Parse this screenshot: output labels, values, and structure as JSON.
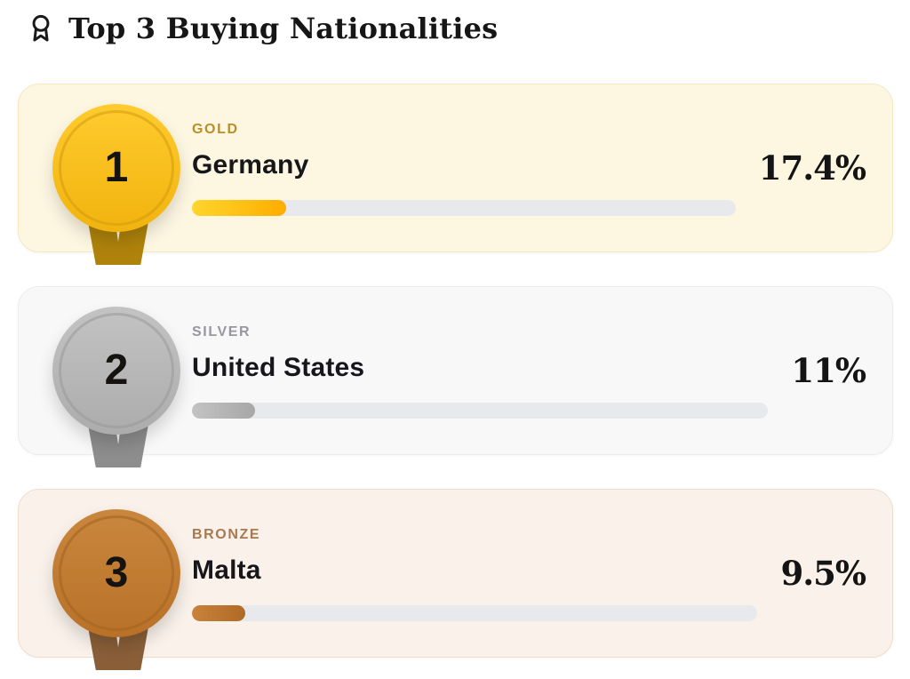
{
  "header": {
    "title": "Top 3 Buying Nationalities",
    "icon": "award-icon"
  },
  "chart_data": {
    "type": "bar",
    "orientation": "horizontal",
    "title": "Top 3 Buying Nationalities",
    "categories": [
      "Germany",
      "United States",
      "Malta"
    ],
    "values": [
      17.4,
      11,
      9.5
    ],
    "value_labels": [
      "17.4%",
      "11%",
      "9.5%"
    ],
    "tier_labels": [
      "GOLD",
      "SILVER",
      "BRONZE"
    ],
    "xlim": [
      0,
      100
    ],
    "grid": false,
    "legend": false
  },
  "ranks": [
    {
      "rank": "1",
      "tier": "GOLD",
      "country": "Germany",
      "percent": 17.4,
      "percent_label": "17.4%",
      "colors": {
        "card_bg": "#FDF7E2",
        "card_border": "#F4E8C1",
        "medal_top": "#FFCB2E",
        "medal_bottom": "#F1B30E",
        "ring": "#D29B10",
        "ribbon": "#AF830B",
        "label": "#BD8E28",
        "fill_start": "#FFD52C",
        "fill_end": "#FFAD00"
      }
    },
    {
      "rank": "2",
      "tier": "SILVER",
      "country": "United States",
      "percent": 11,
      "percent_label": "11%",
      "colors": {
        "card_bg": "#F8F8F9",
        "card_border": "#ECECEE",
        "medal_top": "#C3C3C3",
        "medal_bottom": "#ACACAC",
        "ring": "#999999",
        "ribbon": "#8D8D8D",
        "label": "#97979F",
        "fill_start": "#C3C3C3",
        "fill_end": "#A7A7A7"
      }
    },
    {
      "rank": "3",
      "tier": "BRONZE",
      "country": "Malta",
      "percent": 9.5,
      "percent_label": "9.5%",
      "colors": {
        "card_bg": "#F9F1EA",
        "card_border": "#F0DECC",
        "medal_top": "#C9873D",
        "medal_bottom": "#B97128",
        "ring": "#A2631F",
        "ribbon": "#8A5F38",
        "label": "#A87950",
        "fill_start": "#C9823B",
        "fill_end": "#B06A26"
      }
    }
  ],
  "colors": {
    "page_bg": "#FFFFFF",
    "track": "#E8E9EC",
    "title_text": "#161616",
    "country_text": "#17171B",
    "value_text": "#141414",
    "rank_number": "#151310",
    "header_icon": "#1A1A1A"
  }
}
